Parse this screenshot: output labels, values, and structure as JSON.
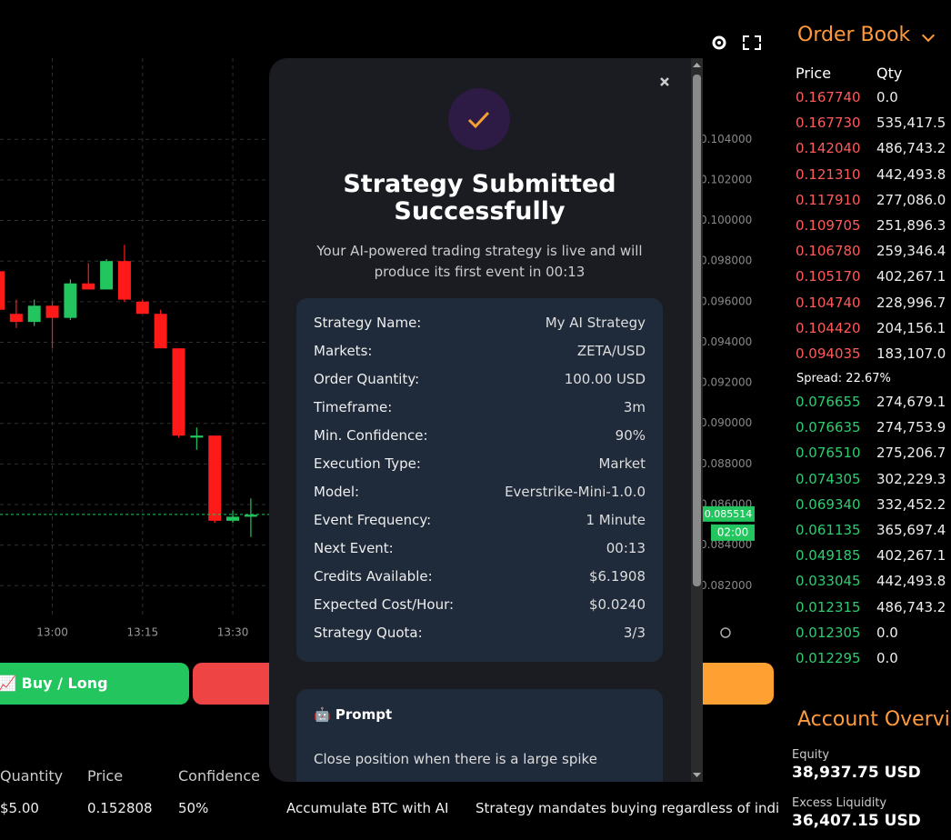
{
  "chart_data": {
    "type": "candlestick",
    "categories": [
      null,
      null,
      null,
      "13:00",
      null,
      null,
      null,
      null,
      "13:15",
      null,
      null,
      null,
      null,
      "13:30",
      null
    ],
    "open": [
      0.0975,
      0.0954,
      0.095,
      0.0958,
      0.0952,
      0.0969,
      0.0966,
      0.098,
      0.096,
      0.0954,
      0.0937,
      0.0893,
      0.0894,
      0.0852,
      0.0854
    ],
    "high": [
      0.0977,
      0.0961,
      0.0961,
      0.096,
      0.0971,
      0.0979,
      0.0981,
      0.0988,
      0.0961,
      0.0956,
      0.0937,
      0.0898,
      0.0894,
      0.0857,
      0.0863
    ],
    "low": [
      0.0955,
      0.0947,
      0.0948,
      0.0937,
      0.0951,
      0.0966,
      0.0966,
      0.096,
      0.0954,
      0.0937,
      0.0893,
      0.0887,
      0.0851,
      0.0851,
      0.0844
    ],
    "close": [
      0.0956,
      0.095,
      0.0958,
      0.0952,
      0.0969,
      0.0966,
      0.098,
      0.0961,
      0.0954,
      0.0937,
      0.0894,
      0.0894,
      0.0852,
      0.0854,
      0.0855
    ],
    "up_color": "#22c55e",
    "down_color": "#ff1a1a",
    "ylim": [
      0.0804,
      0.108
    ],
    "yticks": [
      {
        "value": 0.104,
        "label": "0.104000"
      },
      {
        "value": 0.102,
        "label": "0.102000"
      },
      {
        "value": 0.1,
        "label": "0.100000"
      },
      {
        "value": 0.098,
        "label": "0.098000"
      },
      {
        "value": 0.096,
        "label": "0.096000"
      },
      {
        "value": 0.094,
        "label": "0.094000"
      },
      {
        "value": 0.092,
        "label": "0.092000"
      },
      {
        "value": 0.09,
        "label": "0.090000"
      },
      {
        "value": 0.088,
        "label": "0.088000"
      },
      {
        "value": 0.086,
        "label": "0.086000"
      },
      {
        "value": 0.084,
        "label": "0.084000"
      },
      {
        "value": 0.082,
        "label": "0.082000"
      }
    ],
    "grid": true,
    "last_price": 0.085514,
    "countdown": "02:00"
  },
  "trade_buttons": {
    "buy": "📈 Buy / Long"
  },
  "trades_table": {
    "columns": [
      "Quantity",
      "Price",
      "Confidence"
    ],
    "rows": [
      [
        "$5.00",
        "0.152808",
        "50%",
        "Accumulate BTC with AI",
        "Strategy mandates buying regardless of indi"
      ]
    ]
  },
  "order_book": {
    "title": "Order Book",
    "columns": [
      "Price",
      "Qty"
    ],
    "asks": [
      [
        "0.167740",
        "0.0"
      ],
      [
        "0.167730",
        "535,417.5"
      ],
      [
        "0.142040",
        "486,743.2"
      ],
      [
        "0.121310",
        "442,493.8"
      ],
      [
        "0.117910",
        "277,086.0"
      ],
      [
        "0.109705",
        "251,896.3"
      ],
      [
        "0.106780",
        "259,346.4"
      ],
      [
        "0.105170",
        "402,267.1"
      ],
      [
        "0.104740",
        "228,996.7"
      ],
      [
        "0.104420",
        "204,156.1"
      ],
      [
        "0.094035",
        "183,107.0"
      ]
    ],
    "spread": "Spread: 22.67%",
    "bids": [
      [
        "0.076655",
        "274,679.1"
      ],
      [
        "0.076635",
        "274,753.9"
      ],
      [
        "0.076510",
        "275,206.7"
      ],
      [
        "0.074305",
        "302,229.3"
      ],
      [
        "0.069340",
        "332,452.2"
      ],
      [
        "0.061135",
        "365,697.4"
      ],
      [
        "0.049185",
        "402,267.1"
      ],
      [
        "0.033045",
        "442,493.8"
      ],
      [
        "0.012315",
        "486,743.2"
      ],
      [
        "0.012305",
        "0.0"
      ],
      [
        "0.012295",
        "0.0"
      ]
    ]
  },
  "account": {
    "title": "Account Overview",
    "items": [
      {
        "label": "Equity",
        "value": "38,937.75 USD"
      },
      {
        "label": "Excess Liquidity",
        "value": "36,407.15 USD"
      }
    ]
  },
  "modal": {
    "title": "Strategy Submitted Successfully",
    "subtitle": "Your AI-powered trading strategy is live and will produce its first event in 00:13",
    "details": [
      {
        "label": "Strategy Name:",
        "value": "My AI Strategy"
      },
      {
        "label": "Markets:",
        "value": "ZETA/USD"
      },
      {
        "label": "Order Quantity:",
        "value": "100.00 USD"
      },
      {
        "label": "Timeframe:",
        "value": "3m"
      },
      {
        "label": "Min. Confidence:",
        "value": "90%"
      },
      {
        "label": "Execution Type:",
        "value": "Market"
      },
      {
        "label": "Model:",
        "value": "Everstrike-Mini-1.0.0"
      },
      {
        "label": "Event Frequency:",
        "value": "1 Minute"
      },
      {
        "label": "Next Event:",
        "value": "00:13"
      },
      {
        "label": "Credits Available:",
        "value": "$6.1908"
      },
      {
        "label": "Expected Cost/Hour:",
        "value": "$0.0240"
      },
      {
        "label": "Strategy Quota:",
        "value": "3/3"
      }
    ],
    "prompt_title": "🤖 Prompt",
    "prompt": "Close position when there is a large spike"
  }
}
